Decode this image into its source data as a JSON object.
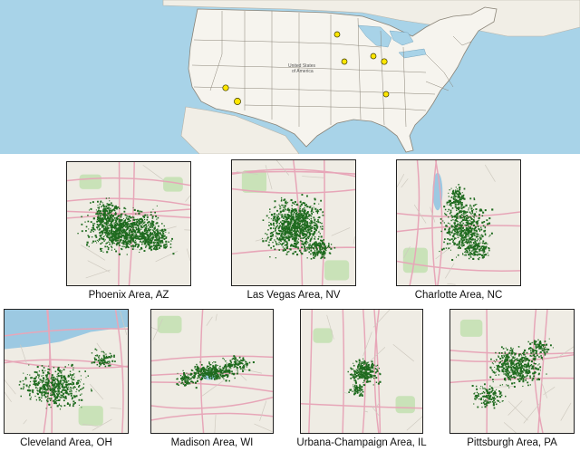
{
  "overview_map": {
    "country_label_line1": "United States",
    "country_label_line2": "of America",
    "marker_color": "#ffe600"
  },
  "regions": [
    {
      "id": "phoenix",
      "caption": "Phoenix Area, AZ"
    },
    {
      "id": "lasvegas",
      "caption": "Las Vegas Area, NV"
    },
    {
      "id": "charlotte",
      "caption": "Charlotte Area, NC"
    },
    {
      "id": "cleveland",
      "caption": "Cleveland Area, OH"
    },
    {
      "id": "madison",
      "caption": "Madison Area, WI"
    },
    {
      "id": "urbana",
      "caption": "Urbana-Champaign Area, IL"
    },
    {
      "id": "pittsburgh",
      "caption": "Pittsburgh Area, PA"
    }
  ],
  "colors": {
    "point": "#1f6b1f",
    "land": "#efece4",
    "water": "#9cc9e2",
    "park": "#c9e2b8",
    "road": "#e7a6b8"
  }
}
